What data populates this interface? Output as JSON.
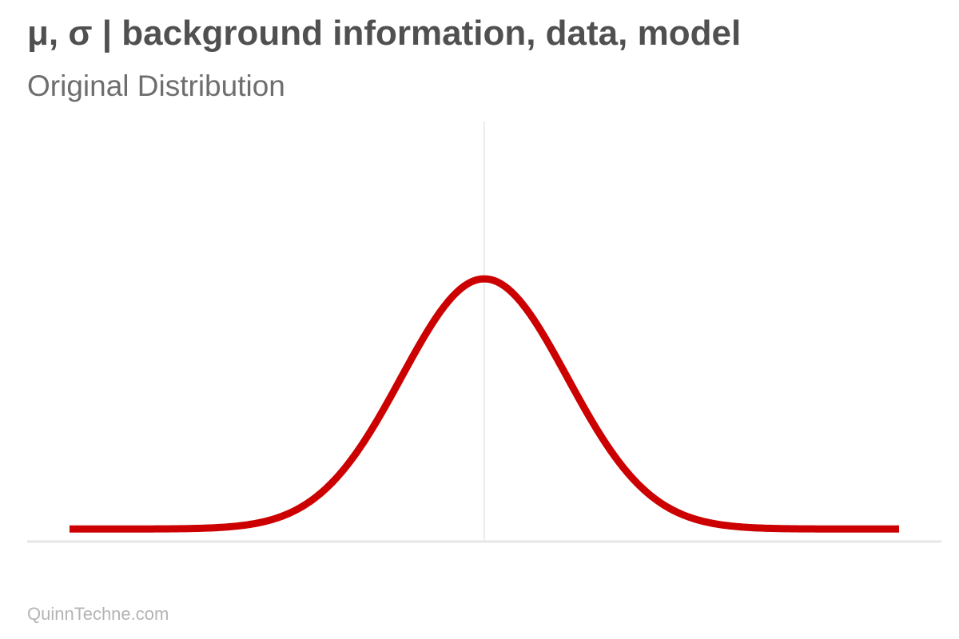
{
  "header": {
    "title": "μ, σ | background information, data, model",
    "subtitle": "Original Distribution"
  },
  "footer": {
    "credit": "QuinnTechne.com"
  },
  "colors": {
    "curve": "#cc0000",
    "axis": "#e6e6e6",
    "mean_line": "#d9d9d9",
    "title": "#505050",
    "subtitle": "#6e6e6e",
    "footer": "#b4b4b4"
  },
  "chart_data": {
    "type": "line",
    "distribution": "normal",
    "mean": 0,
    "sd": 1,
    "xlim": [
      -5,
      5
    ],
    "ylim": [
      -0.02,
      0.65
    ],
    "mean_line": true,
    "grid": false,
    "legend": "none",
    "title": "μ, σ | background information, data, model",
    "subtitle": "Original Distribution",
    "xlabel": "",
    "ylabel": ""
  }
}
